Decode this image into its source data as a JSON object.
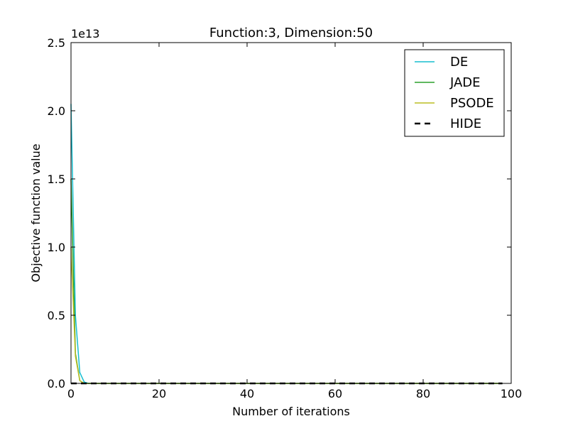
{
  "chart_data": {
    "type": "line",
    "title": "Function:3, Dimension:50",
    "xlabel": "Number of iterations",
    "ylabel": "Objective function value",
    "y_offset_label": "1e13",
    "xlim": [
      0,
      100
    ],
    "ylim": [
      0,
      2.5
    ],
    "y_scale": 10000000000000.0,
    "xticks": [
      0,
      20,
      40,
      60,
      80,
      100
    ],
    "xtick_labels": [
      "0",
      "20",
      "40",
      "60",
      "80",
      "100"
    ],
    "yticks": [
      0,
      0.5,
      1.0,
      1.5,
      2.0,
      2.5
    ],
    "ytick_labels": [
      "0.0",
      "0.5",
      "1.0",
      "1.5",
      "2.0",
      "2.5"
    ],
    "grid": false,
    "legend_position": "top-right",
    "x": [
      0,
      1,
      2,
      3,
      4,
      5,
      10,
      20,
      30,
      40,
      50,
      60,
      70,
      80,
      90,
      98
    ],
    "series": [
      {
        "name": "DE",
        "color": "#17becf",
        "dash": "solid",
        "values": [
          2.05,
          0.5,
          0.08,
          0.01,
          0.0,
          0.0,
          0.0,
          0.0,
          0.0,
          0.0,
          0.0,
          0.0,
          0.0,
          0.0,
          0.0,
          0.0
        ]
      },
      {
        "name": "JADE",
        "color": "#2ca02c",
        "dash": "solid",
        "values": [
          1.5,
          0.22,
          0.02,
          0.0,
          0.0,
          0.0,
          0.0,
          0.0,
          0.0,
          0.0,
          0.0,
          0.0,
          0.0,
          0.0,
          0.0,
          0.0
        ]
      },
      {
        "name": "PSODE",
        "color": "#bcbd22",
        "dash": "solid",
        "values": [
          1.0,
          0.2,
          0.02,
          0.0,
          0.0,
          0.0,
          0.0,
          0.0,
          0.0,
          0.0,
          0.0,
          0.0,
          0.0,
          0.0,
          0.0,
          0.0
        ]
      },
      {
        "name": "HIDE",
        "color": "#000000",
        "dash": "dashed",
        "values": [
          0.0,
          0.0,
          0.0,
          0.0,
          0.0,
          0.0,
          0.0,
          0.0,
          0.0,
          0.0,
          0.0,
          0.0,
          0.0,
          0.0,
          0.0,
          0.0
        ]
      }
    ]
  }
}
